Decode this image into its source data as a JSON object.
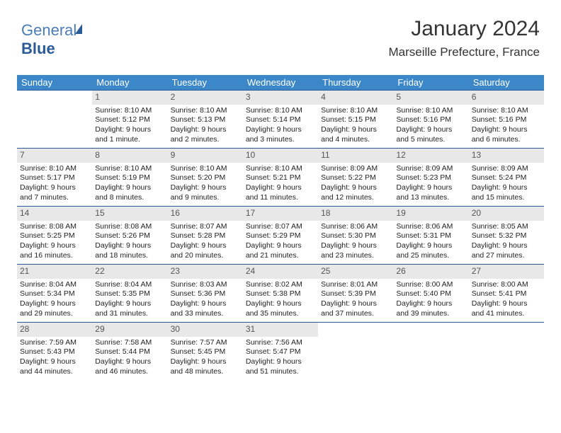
{
  "logo": {
    "text1": "General",
    "text2": "Blue"
  },
  "header": {
    "title": "January 2024",
    "location": "Marseille Prefecture, France"
  },
  "weekdays": [
    "Sunday",
    "Monday",
    "Tuesday",
    "Wednesday",
    "Thursday",
    "Friday",
    "Saturday"
  ],
  "colors": {
    "header_bg": "#3c87c7",
    "header_text": "#ffffff",
    "border": "#2b5a99",
    "daynum_bg": "#e8e8e8"
  },
  "cells": [
    {
      "day": "",
      "sunrise": "",
      "sunset": "",
      "daylight1": "",
      "daylight2": "",
      "empty": true
    },
    {
      "day": "1",
      "sunrise": "Sunrise: 8:10 AM",
      "sunset": "Sunset: 5:12 PM",
      "daylight1": "Daylight: 9 hours",
      "daylight2": "and 1 minute."
    },
    {
      "day": "2",
      "sunrise": "Sunrise: 8:10 AM",
      "sunset": "Sunset: 5:13 PM",
      "daylight1": "Daylight: 9 hours",
      "daylight2": "and 2 minutes."
    },
    {
      "day": "3",
      "sunrise": "Sunrise: 8:10 AM",
      "sunset": "Sunset: 5:14 PM",
      "daylight1": "Daylight: 9 hours",
      "daylight2": "and 3 minutes."
    },
    {
      "day": "4",
      "sunrise": "Sunrise: 8:10 AM",
      "sunset": "Sunset: 5:15 PM",
      "daylight1": "Daylight: 9 hours",
      "daylight2": "and 4 minutes."
    },
    {
      "day": "5",
      "sunrise": "Sunrise: 8:10 AM",
      "sunset": "Sunset: 5:16 PM",
      "daylight1": "Daylight: 9 hours",
      "daylight2": "and 5 minutes."
    },
    {
      "day": "6",
      "sunrise": "Sunrise: 8:10 AM",
      "sunset": "Sunset: 5:16 PM",
      "daylight1": "Daylight: 9 hours",
      "daylight2": "and 6 minutes."
    },
    {
      "day": "7",
      "sunrise": "Sunrise: 8:10 AM",
      "sunset": "Sunset: 5:17 PM",
      "daylight1": "Daylight: 9 hours",
      "daylight2": "and 7 minutes."
    },
    {
      "day": "8",
      "sunrise": "Sunrise: 8:10 AM",
      "sunset": "Sunset: 5:19 PM",
      "daylight1": "Daylight: 9 hours",
      "daylight2": "and 8 minutes."
    },
    {
      "day": "9",
      "sunrise": "Sunrise: 8:10 AM",
      "sunset": "Sunset: 5:20 PM",
      "daylight1": "Daylight: 9 hours",
      "daylight2": "and 9 minutes."
    },
    {
      "day": "10",
      "sunrise": "Sunrise: 8:10 AM",
      "sunset": "Sunset: 5:21 PM",
      "daylight1": "Daylight: 9 hours",
      "daylight2": "and 11 minutes."
    },
    {
      "day": "11",
      "sunrise": "Sunrise: 8:09 AM",
      "sunset": "Sunset: 5:22 PM",
      "daylight1": "Daylight: 9 hours",
      "daylight2": "and 12 minutes."
    },
    {
      "day": "12",
      "sunrise": "Sunrise: 8:09 AM",
      "sunset": "Sunset: 5:23 PM",
      "daylight1": "Daylight: 9 hours",
      "daylight2": "and 13 minutes."
    },
    {
      "day": "13",
      "sunrise": "Sunrise: 8:09 AM",
      "sunset": "Sunset: 5:24 PM",
      "daylight1": "Daylight: 9 hours",
      "daylight2": "and 15 minutes."
    },
    {
      "day": "14",
      "sunrise": "Sunrise: 8:08 AM",
      "sunset": "Sunset: 5:25 PM",
      "daylight1": "Daylight: 9 hours",
      "daylight2": "and 16 minutes."
    },
    {
      "day": "15",
      "sunrise": "Sunrise: 8:08 AM",
      "sunset": "Sunset: 5:26 PM",
      "daylight1": "Daylight: 9 hours",
      "daylight2": "and 18 minutes."
    },
    {
      "day": "16",
      "sunrise": "Sunrise: 8:07 AM",
      "sunset": "Sunset: 5:28 PM",
      "daylight1": "Daylight: 9 hours",
      "daylight2": "and 20 minutes."
    },
    {
      "day": "17",
      "sunrise": "Sunrise: 8:07 AM",
      "sunset": "Sunset: 5:29 PM",
      "daylight1": "Daylight: 9 hours",
      "daylight2": "and 21 minutes."
    },
    {
      "day": "18",
      "sunrise": "Sunrise: 8:06 AM",
      "sunset": "Sunset: 5:30 PM",
      "daylight1": "Daylight: 9 hours",
      "daylight2": "and 23 minutes."
    },
    {
      "day": "19",
      "sunrise": "Sunrise: 8:06 AM",
      "sunset": "Sunset: 5:31 PM",
      "daylight1": "Daylight: 9 hours",
      "daylight2": "and 25 minutes."
    },
    {
      "day": "20",
      "sunrise": "Sunrise: 8:05 AM",
      "sunset": "Sunset: 5:32 PM",
      "daylight1": "Daylight: 9 hours",
      "daylight2": "and 27 minutes."
    },
    {
      "day": "21",
      "sunrise": "Sunrise: 8:04 AM",
      "sunset": "Sunset: 5:34 PM",
      "daylight1": "Daylight: 9 hours",
      "daylight2": "and 29 minutes."
    },
    {
      "day": "22",
      "sunrise": "Sunrise: 8:04 AM",
      "sunset": "Sunset: 5:35 PM",
      "daylight1": "Daylight: 9 hours",
      "daylight2": "and 31 minutes."
    },
    {
      "day": "23",
      "sunrise": "Sunrise: 8:03 AM",
      "sunset": "Sunset: 5:36 PM",
      "daylight1": "Daylight: 9 hours",
      "daylight2": "and 33 minutes."
    },
    {
      "day": "24",
      "sunrise": "Sunrise: 8:02 AM",
      "sunset": "Sunset: 5:38 PM",
      "daylight1": "Daylight: 9 hours",
      "daylight2": "and 35 minutes."
    },
    {
      "day": "25",
      "sunrise": "Sunrise: 8:01 AM",
      "sunset": "Sunset: 5:39 PM",
      "daylight1": "Daylight: 9 hours",
      "daylight2": "and 37 minutes."
    },
    {
      "day": "26",
      "sunrise": "Sunrise: 8:00 AM",
      "sunset": "Sunset: 5:40 PM",
      "daylight1": "Daylight: 9 hours",
      "daylight2": "and 39 minutes."
    },
    {
      "day": "27",
      "sunrise": "Sunrise: 8:00 AM",
      "sunset": "Sunset: 5:41 PM",
      "daylight1": "Daylight: 9 hours",
      "daylight2": "and 41 minutes."
    },
    {
      "day": "28",
      "sunrise": "Sunrise: 7:59 AM",
      "sunset": "Sunset: 5:43 PM",
      "daylight1": "Daylight: 9 hours",
      "daylight2": "and 44 minutes."
    },
    {
      "day": "29",
      "sunrise": "Sunrise: 7:58 AM",
      "sunset": "Sunset: 5:44 PM",
      "daylight1": "Daylight: 9 hours",
      "daylight2": "and 46 minutes."
    },
    {
      "day": "30",
      "sunrise": "Sunrise: 7:57 AM",
      "sunset": "Sunset: 5:45 PM",
      "daylight1": "Daylight: 9 hours",
      "daylight2": "and 48 minutes."
    },
    {
      "day": "31",
      "sunrise": "Sunrise: 7:56 AM",
      "sunset": "Sunset: 5:47 PM",
      "daylight1": "Daylight: 9 hours",
      "daylight2": "and 51 minutes."
    },
    {
      "day": "",
      "sunrise": "",
      "sunset": "",
      "daylight1": "",
      "daylight2": "",
      "empty": true
    },
    {
      "day": "",
      "sunrise": "",
      "sunset": "",
      "daylight1": "",
      "daylight2": "",
      "empty": true
    },
    {
      "day": "",
      "sunrise": "",
      "sunset": "",
      "daylight1": "",
      "daylight2": "",
      "empty": true
    }
  ]
}
